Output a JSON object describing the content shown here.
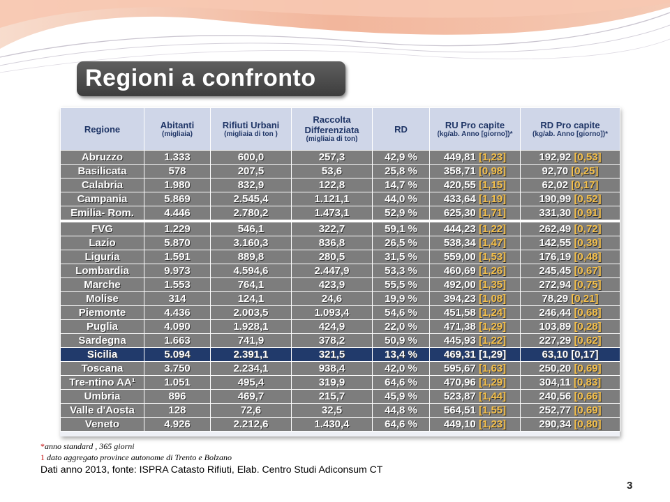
{
  "slide": {
    "title": "Regioni a confronto",
    "page_number": "3",
    "colors": {
      "row": "#7d7d7d",
      "highlight": "#213a6b",
      "header": "#cfd6e8",
      "header_text": "#1f3566",
      "bracket": "#f5c04b"
    }
  },
  "table": {
    "headers": [
      {
        "label": "Regione",
        "sub": ""
      },
      {
        "label": "Abitanti",
        "sub": "(migliaia)"
      },
      {
        "label": "Rifiuti Urbani",
        "sub": "(migliaia di ton )"
      },
      {
        "label": "Raccolta Differenziata",
        "sub": "(migliaia di ton)"
      },
      {
        "label": "RD",
        "sub": ""
      },
      {
        "label": "RU Pro capite",
        "sub": "(kg/ab. Anno [giorno])*"
      },
      {
        "label": "RD Pro capite",
        "sub": "(kg/ab. Anno [giorno])*"
      }
    ],
    "rows": [
      {
        "regione": "Abruzzo",
        "abitanti": "1.333",
        "ru": "600,0",
        "rd_ton": "257,3",
        "rd": "42,9 %",
        "ru_pc": "449,81",
        "ru_day": "[1,23]",
        "rd_pc": "192,92",
        "rd_day": "[0,53]"
      },
      {
        "regione": "Basilicata",
        "abitanti": "578",
        "ru": "207,5",
        "rd_ton": "53,6",
        "rd": "25,8 %",
        "ru_pc": "358,71",
        "ru_day": "[0,98]",
        "rd_pc": "92,70",
        "rd_day": "[0,25]"
      },
      {
        "regione": "Calabria",
        "abitanti": "1.980",
        "ru": "832,9",
        "rd_ton": "122,8",
        "rd": "14,7 %",
        "ru_pc": "420,55",
        "ru_day": "[1,15]",
        "rd_pc": "62,02",
        "rd_day": "[0,17]"
      },
      {
        "regione": "Campania",
        "abitanti": "5.869",
        "ru": "2.545,4",
        "rd_ton": "1.121,1",
        "rd": "44,0 %",
        "ru_pc": "433,64",
        "ru_day": "[1,19]",
        "rd_pc": "190,99",
        "rd_day": "[0,52]"
      },
      {
        "regione": "Emilia- Rom.",
        "abitanti": "4.446",
        "ru": "2.780,2",
        "rd_ton": "1.473,1",
        "rd": "52,9 %",
        "ru_pc": "625,30",
        "ru_day": "[1,71]",
        "rd_pc": "331,30",
        "rd_day": "[0,91]"
      },
      {
        "regione": "FVG",
        "abitanti": "1.229",
        "ru": "546,1",
        "rd_ton": "322,7",
        "rd": "59,1 %",
        "ru_pc": "444,23",
        "ru_day": "[1,22]",
        "rd_pc": "262,49",
        "rd_day": "[0,72]"
      },
      {
        "regione": "Lazio",
        "abitanti": "5.870",
        "ru": "3.160,3",
        "rd_ton": "836,8",
        "rd": "26,5 %",
        "ru_pc": "538,34",
        "ru_day": "[1,47]",
        "rd_pc": "142,55",
        "rd_day": "[0,39]"
      },
      {
        "regione": "Liguria",
        "abitanti": "1.591",
        "ru": "889,8",
        "rd_ton": "280,5",
        "rd": "31,5 %",
        "ru_pc": "559,00",
        "ru_day": "[1,53]",
        "rd_pc": "176,19",
        "rd_day": "[0,48]"
      },
      {
        "regione": "Lombardia",
        "abitanti": "9.973",
        "ru": "4.594,6",
        "rd_ton": "2.447,9",
        "rd": "53,3 %",
        "ru_pc": "460,69",
        "ru_day": "[1,26]",
        "rd_pc": "245,45",
        "rd_day": "[0,67]"
      },
      {
        "regione": "Marche",
        "abitanti": "1.553",
        "ru": "764,1",
        "rd_ton": "423,9",
        "rd": "55,5 %",
        "ru_pc": "492,00",
        "ru_day": "[1,35]",
        "rd_pc": "272,94",
        "rd_day": "[0,75]"
      },
      {
        "regione": "Molise",
        "abitanti": "314",
        "ru": "124,1",
        "rd_ton": "24,6",
        "rd": "19,9 %",
        "ru_pc": "394,23",
        "ru_day": "[1,08]",
        "rd_pc": "78,29",
        "rd_day": "[0,21]"
      },
      {
        "regione": "Piemonte",
        "abitanti": "4.436",
        "ru": "2.003,5",
        "rd_ton": "1.093,4",
        "rd": "54,6 %",
        "ru_pc": "451,58",
        "ru_day": "[1,24]",
        "rd_pc": "246,44",
        "rd_day": "[0,68]"
      },
      {
        "regione": "Puglia",
        "abitanti": "4.090",
        "ru": "1.928,1",
        "rd_ton": "424,9",
        "rd": "22,0 %",
        "ru_pc": "471,38",
        "ru_day": "[1,29]",
        "rd_pc": "103,89",
        "rd_day": "[0,28]"
      },
      {
        "regione": "Sardegna",
        "abitanti": "1.663",
        "ru": "741,9",
        "rd_ton": "378,2",
        "rd": "50,9 %",
        "ru_pc": "445,93",
        "ru_day": "[1,22]",
        "rd_pc": "227,29",
        "rd_day": "[0,62]"
      },
      {
        "regione": "Sicilia",
        "abitanti": "5.094",
        "ru": "2.391,1",
        "rd_ton": "321,5",
        "rd": "13,4 %",
        "ru_pc": "469,31",
        "ru_day": "[1,29]",
        "rd_pc": "63,10",
        "rd_day": "[0,17]"
      },
      {
        "regione": "Toscana",
        "abitanti": "3.750",
        "ru": "2.234,1",
        "rd_ton": "938,4",
        "rd": "42,0 %",
        "ru_pc": "595,67",
        "ru_day": "[1,63]",
        "rd_pc": "250,20",
        "rd_day": "[0,69]"
      },
      {
        "regione": "Tre-ntino AA¹",
        "abitanti": "1.051",
        "ru": "495,4",
        "rd_ton": "319,9",
        "rd": "64,6 %",
        "ru_pc": "470,96",
        "ru_day": "[1,29]",
        "rd_pc": "304,11",
        "rd_day": "[0,83]"
      },
      {
        "regione": "Umbria",
        "abitanti": "896",
        "ru": "469,7",
        "rd_ton": "215,7",
        "rd": "45,9 %",
        "ru_pc": "523,87",
        "ru_day": "[1,44]",
        "rd_pc": "240,56",
        "rd_day": "[0,66]"
      },
      {
        "regione": "Valle d'Aosta",
        "abitanti": "128",
        "ru": "72,6",
        "rd_ton": "32,5",
        "rd": "44,8 %",
        "ru_pc": "564,51",
        "ru_day": "[1,55]",
        "rd_pc": "252,77",
        "rd_day": "[0,69]"
      },
      {
        "regione": "Veneto",
        "abitanti": "4.926",
        "ru": "2.212,6",
        "rd_ton": "1.430,4",
        "rd": "64,6 %",
        "ru_pc": "449,10",
        "ru_day": "[1,23]",
        "rd_pc": "290,34",
        "rd_day": "[0,80]"
      }
    ]
  },
  "footnotes": {
    "star_mark": "*",
    "star_text": "anno standard , 365 giorni",
    "one_mark": "1",
    "one_text": "dato aggregato province autonome di Trento e Bolzano",
    "source": "Dati anno 2013, fonte:  ISPRA Catasto Rifiuti, Elab. Centro Studi Adiconsum CT"
  }
}
